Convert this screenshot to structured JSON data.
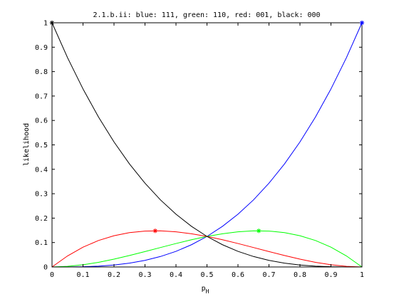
{
  "chart_data": {
    "type": "line",
    "title": "2.1.b.ii: blue: 111, green: 110, red: 001, black: 000",
    "xlabel": "p",
    "xlabel_sub": "H",
    "ylabel": "likelihood",
    "xlim": [
      0,
      1
    ],
    "ylim": [
      0,
      1
    ],
    "x_ticks": [
      "0",
      "0.1",
      "0.2",
      "0.3",
      "0.4",
      "0.5",
      "0.6",
      "0.7",
      "0.8",
      "0.9",
      "1"
    ],
    "y_ticks": [
      "0",
      "0.1",
      "0.2",
      "0.3",
      "0.4",
      "0.5",
      "0.6",
      "0.7",
      "0.8",
      "0.9",
      "1"
    ],
    "grid": false,
    "x": [
      0,
      0.05,
      0.1,
      0.15,
      0.2,
      0.25,
      0.3,
      0.35,
      0.4,
      0.45,
      0.5,
      0.55,
      0.6,
      0.65,
      0.7,
      0.75,
      0.8,
      0.85,
      0.9,
      0.95,
      1
    ],
    "series": [
      {
        "name": "111",
        "color": "#0000ff",
        "values": [
          0,
          0.0001,
          0.001,
          0.0034,
          0.008,
          0.0156,
          0.027,
          0.0429,
          0.064,
          0.0911,
          0.125,
          0.1664,
          0.216,
          0.2746,
          0.343,
          0.4219,
          0.512,
          0.6141,
          0.729,
          0.8574,
          1
        ],
        "max_marker": [
          1,
          1
        ]
      },
      {
        "name": "110",
        "color": "#00ff00",
        "values": [
          0,
          0.0024,
          0.009,
          0.0191,
          0.032,
          0.0469,
          0.063,
          0.0796,
          0.096,
          0.1114,
          0.125,
          0.1361,
          0.144,
          0.1479,
          0.147,
          0.1406,
          0.128,
          0.1084,
          0.081,
          0.0451,
          0
        ],
        "max_marker": [
          0.667,
          0.148
        ]
      },
      {
        "name": "001",
        "color": "#ff0000",
        "values": [
          0,
          0.0451,
          0.081,
          0.1084,
          0.128,
          0.1406,
          0.147,
          0.1479,
          0.144,
          0.1361,
          0.125,
          0.1114,
          0.096,
          0.0796,
          0.063,
          0.0469,
          0.032,
          0.0191,
          0.009,
          0.0024,
          0
        ],
        "max_marker": [
          0.333,
          0.148
        ]
      },
      {
        "name": "000",
        "color": "#000000",
        "values": [
          1,
          0.8574,
          0.729,
          0.6141,
          0.512,
          0.4219,
          0.343,
          0.2746,
          0.216,
          0.1664,
          0.125,
          0.0911,
          0.064,
          0.0429,
          0.027,
          0.0156,
          0.008,
          0.0034,
          0.001,
          0.0001,
          0
        ],
        "max_marker": [
          0,
          1
        ]
      }
    ]
  }
}
